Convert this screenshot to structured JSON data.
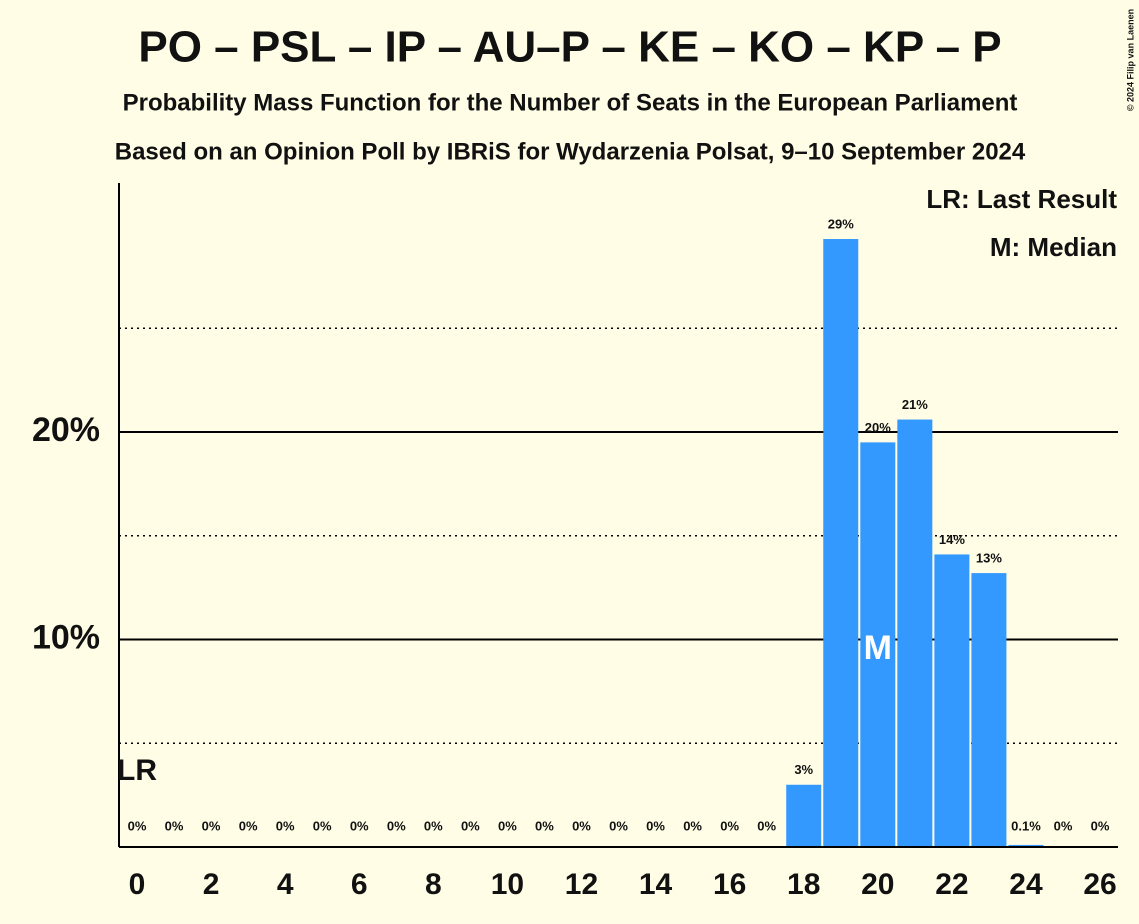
{
  "chart_data": {
    "type": "bar",
    "title": "PO – PSL – IP – AU–P – KE – KO – KP – P",
    "subtitle": [
      "Probability Mass Function for the Number of Seats in the European Parliament",
      "Based on an Opinion Poll by IBRiS for Wydarzenia Polsat, 9–10 September 2024"
    ],
    "copyright": "© 2024 Filip van Laenen",
    "categories": [
      0,
      null,
      2,
      null,
      4,
      null,
      6,
      null,
      8,
      null,
      10,
      null,
      12,
      null,
      14,
      null,
      16,
      null,
      18,
      null,
      20,
      null,
      22,
      null,
      24,
      null,
      26
    ],
    "values": [
      0,
      0,
      0,
      0,
      0,
      0,
      0,
      0,
      0,
      0,
      0,
      0,
      0,
      0,
      0,
      0,
      0,
      0,
      3.0,
      29.3,
      19.5,
      20.6,
      14.1,
      13.2,
      0.1,
      0,
      0
    ],
    "value_labels": [
      "0%",
      "0%",
      "0%",
      "0%",
      "0%",
      "0%",
      "0%",
      "0%",
      "0%",
      "0%",
      "0%",
      "0%",
      "0%",
      "0%",
      "0%",
      "0%",
      "0%",
      "0%",
      "3%",
      "29%",
      "20%",
      "21%",
      "14%",
      "13%",
      "0.1%",
      "0%",
      "0%"
    ],
    "color": "#3399ff",
    "ylim": [
      0,
      32
    ],
    "yticks": [
      {
        "value": 10,
        "label": "10%"
      },
      {
        "value": 20,
        "label": "20%"
      }
    ],
    "minor_yticks": [
      5,
      15,
      25
    ],
    "grid": true,
    "annotations": [
      {
        "text": "LR",
        "x": 0
      },
      {
        "text": "M",
        "x": 20
      }
    ],
    "legend": [
      "LR: Last Result",
      "M: Median"
    ]
  }
}
